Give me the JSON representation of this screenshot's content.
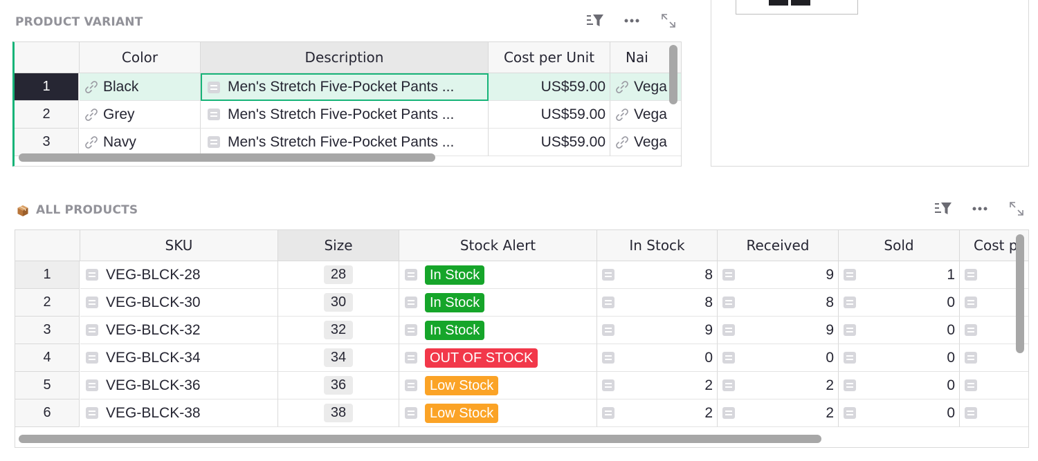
{
  "variant_section": {
    "title": "PRODUCT VARIANT",
    "columns": [
      "Color",
      "Description",
      "Cost per Unit",
      "Nai"
    ],
    "rows": [
      {
        "num": "1",
        "color": "Black",
        "description": "Men's Stretch Five-Pocket Pants ...",
        "cost": "US$59.00",
        "name": "Vega"
      },
      {
        "num": "2",
        "color": "Grey",
        "description": "Men's Stretch Five-Pocket Pants ...",
        "cost": "US$59.00",
        "name": "Vega"
      },
      {
        "num": "3",
        "color": "Navy",
        "description": "Men's Stretch Five-Pocket Pants ...",
        "cost": "US$59.00",
        "name": "Vega"
      }
    ]
  },
  "products_section": {
    "title": "ALL PRODUCTS",
    "columns": [
      "SKU",
      "Size",
      "Stock Alert",
      "In Stock",
      "Received",
      "Sold",
      "Cost p"
    ],
    "rows": [
      {
        "num": "1",
        "sku": "VEG-BLCK-28",
        "size": "28",
        "alert": "In Stock",
        "in_stock": "8",
        "received": "9",
        "sold": "1"
      },
      {
        "num": "2",
        "sku": "VEG-BLCK-30",
        "size": "30",
        "alert": "In Stock",
        "in_stock": "8",
        "received": "8",
        "sold": "0"
      },
      {
        "num": "3",
        "sku": "VEG-BLCK-32",
        "size": "32",
        "alert": "In Stock",
        "in_stock": "9",
        "received": "9",
        "sold": "0"
      },
      {
        "num": "4",
        "sku": "VEG-BLCK-34",
        "size": "34",
        "alert": "OUT OF STOCK",
        "in_stock": "0",
        "received": "0",
        "sold": "0"
      },
      {
        "num": "5",
        "sku": "VEG-BLCK-36",
        "size": "36",
        "alert": "Low Stock",
        "in_stock": "2",
        "received": "2",
        "sold": "0"
      },
      {
        "num": "6",
        "sku": "VEG-BLCK-38",
        "size": "38",
        "alert": "Low Stock",
        "in_stock": "2",
        "received": "2",
        "sold": "0"
      }
    ]
  },
  "alert_colors": {
    "In Stock": "#16a52a",
    "OUT OF STOCK": "#f2384a",
    "Low Stock": "#fba326"
  },
  "accent_color": "#16b378",
  "icons": {
    "sort_filter": "sort-filter-icon",
    "more": "more-options-icon",
    "expand": "expand-icon",
    "link": "link-icon",
    "reference": "reference-field-icon",
    "section": "box-icon"
  }
}
